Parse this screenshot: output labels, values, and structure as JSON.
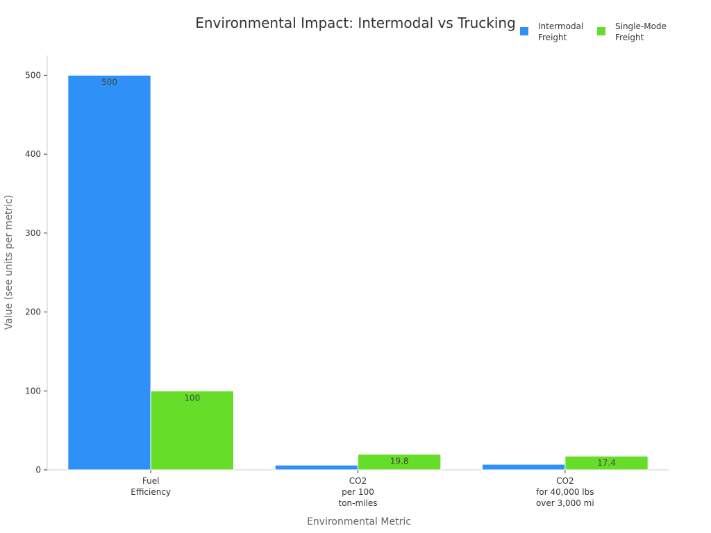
{
  "chart_data": {
    "type": "bar",
    "title": "Environmental Impact: Intermodal vs Trucking",
    "xlabel": "Environmental Metric",
    "ylabel": "Value (see units per metric)",
    "categories": [
      [
        "Fuel",
        "Efficiency"
      ],
      [
        "CO2",
        "per 100",
        "ton-miles"
      ],
      [
        "CO2",
        "for 40,000 lbs",
        "over 3,000 mi"
      ]
    ],
    "series": [
      {
        "name": "Intermodal Freight",
        "legend_lines": [
          "Intermodal",
          "Freight"
        ],
        "color": "#2f91f7",
        "values": [
          500,
          6,
          7
        ],
        "data_labels": [
          "500",
          "",
          ""
        ]
      },
      {
        "name": "Single-Mode Freight",
        "legend_lines": [
          "Single-Mode",
          "Freight"
        ],
        "color": "#66dd28",
        "values": [
          100,
          19.8,
          17.4
        ],
        "data_labels": [
          "100",
          "19.8",
          "17.4"
        ]
      }
    ],
    "ylim": [
      0,
      525
    ],
    "yticks": [
      0,
      100,
      200,
      300,
      400,
      500
    ],
    "grid": false,
    "legend_position": "top-right"
  }
}
